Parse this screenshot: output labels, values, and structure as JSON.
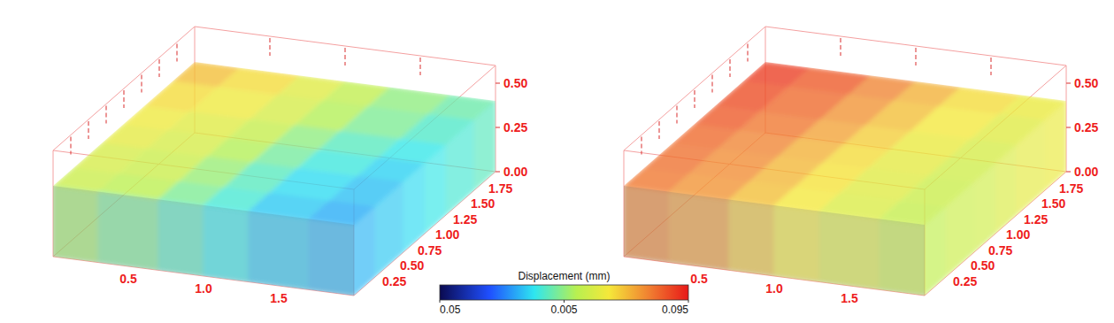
{
  "chart_data": {
    "type": "volume",
    "colorbar": {
      "label": "Displacement (mm)",
      "range": [
        0.005,
        0.095
      ],
      "ticks": [
        0.05,
        0.005,
        0.095
      ]
    },
    "panels": [
      {
        "xlim": [
          0,
          2
        ],
        "ylim": [
          0,
          2
        ],
        "zlim": [
          0,
          0.6
        ],
        "xticks": [
          0.5,
          {
            "value": 1,
            "label": "1.0"
          },
          1.5
        ],
        "yticks": [
          0.25,
          {
            "value": 0.5,
            "label": "0.50"
          },
          0.75,
          {
            "value": 1,
            "label": "1.00"
          },
          1.25,
          {
            "value": 1.5,
            "label": "1.50"
          },
          1.75
        ],
        "zticks": [
          {
            "value": 0,
            "label": "0.00"
          },
          0.25,
          {
            "value": 0.5,
            "label": "0.50"
          }
        ],
        "volume": {
          "x_edges": [
            0,
            0.3,
            0.7,
            1.0,
            1.3,
            1.7,
            2.0
          ],
          "y_edges": [
            0,
            0.3,
            0.7,
            1.0,
            1.3,
            1.7,
            2.0
          ],
          "z_top": 0.4,
          "top_values": [
            [
              0.058,
              0.055,
              0.048,
              0.042,
              0.036,
              0.033
            ],
            [
              0.06,
              0.058,
              0.051,
              0.044,
              0.038,
              0.035
            ],
            [
              0.063,
              0.06,
              0.054,
              0.047,
              0.041,
              0.037
            ],
            [
              0.065,
              0.062,
              0.057,
              0.05,
              0.044,
              0.04
            ],
            [
              0.068,
              0.065,
              0.06,
              0.054,
              0.048,
              0.043
            ],
            [
              0.072,
              0.068,
              0.062,
              0.056,
              0.05,
              0.046
            ]
          ],
          "front_values": [
            0.052,
            0.048,
            0.044,
            0.04,
            0.036,
            0.034
          ],
          "side_values": [
            0.034,
            0.036,
            0.038,
            0.04,
            0.042,
            0.044
          ]
        }
      },
      {
        "xlim": [
          0,
          2
        ],
        "ylim": [
          0,
          2
        ],
        "zlim": [
          0,
          0.6
        ],
        "xticks": [
          0.5,
          {
            "value": 1,
            "label": "1.0"
          },
          1.5
        ],
        "yticks": [
          0.25,
          {
            "value": 0.5,
            "label": "0.50"
          },
          0.75,
          {
            "value": 1,
            "label": "1.00"
          },
          1.25,
          {
            "value": 1.5,
            "label": "1.50"
          },
          1.75
        ],
        "zticks": [
          {
            "value": 0,
            "label": "0.00"
          },
          0.25,
          {
            "value": 0.5,
            "label": "0.50"
          }
        ],
        "volume": {
          "x_edges": [
            0,
            0.3,
            0.7,
            1.0,
            1.3,
            1.7,
            2.0
          ],
          "y_edges": [
            0,
            0.3,
            0.7,
            1.0,
            1.3,
            1.7,
            2.0
          ],
          "z_top": 0.4,
          "top_values": [
            [
              0.082,
              0.078,
              0.072,
              0.066,
              0.061,
              0.057
            ],
            [
              0.083,
              0.079,
              0.073,
              0.067,
              0.062,
              0.058
            ],
            [
              0.084,
              0.08,
              0.074,
              0.068,
              0.063,
              0.059
            ],
            [
              0.086,
              0.082,
              0.076,
              0.07,
              0.064,
              0.06
            ],
            [
              0.088,
              0.084,
              0.078,
              0.072,
              0.066,
              0.062
            ],
            [
              0.09,
              0.086,
              0.08,
              0.074,
              0.068,
              0.064
            ]
          ],
          "front_values": [
            0.08,
            0.077,
            0.071,
            0.066,
            0.062,
            0.058
          ],
          "side_values": [
            0.056,
            0.058,
            0.059,
            0.061,
            0.063,
            0.064
          ]
        }
      }
    ]
  }
}
